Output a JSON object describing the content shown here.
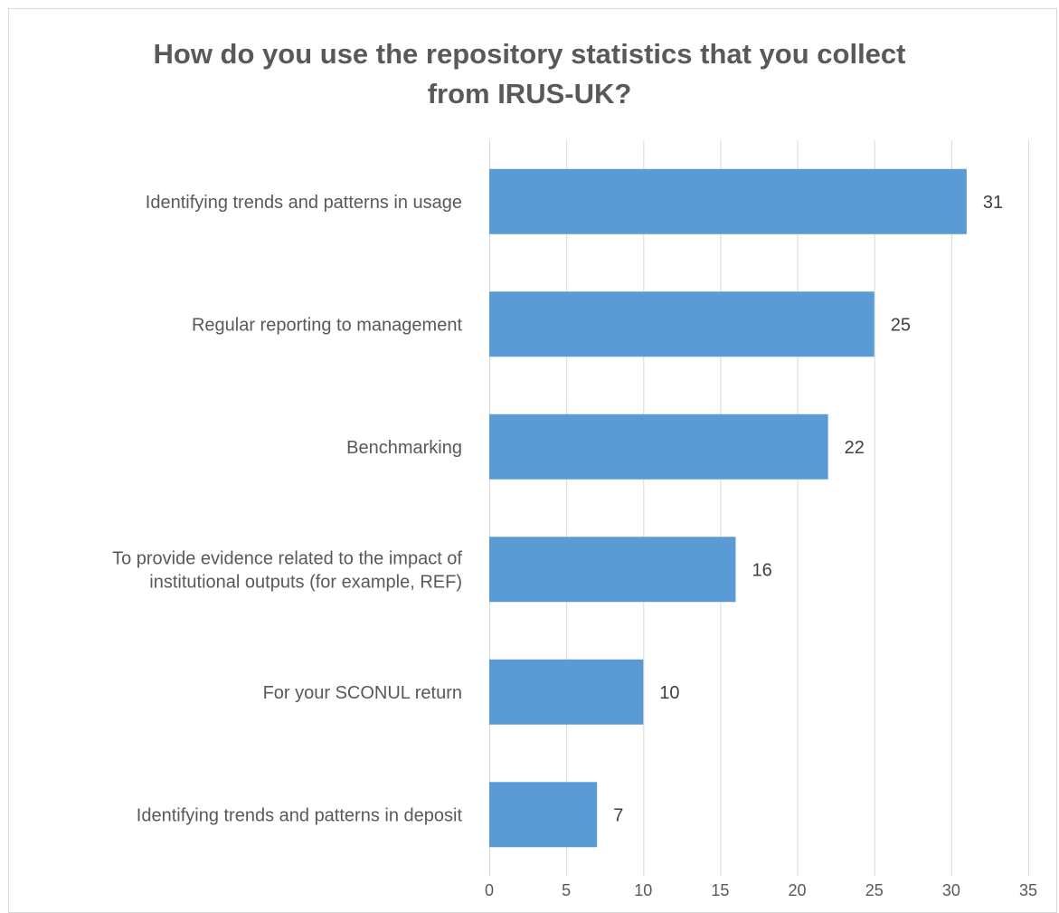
{
  "chart_data": {
    "type": "bar",
    "orientation": "horizontal",
    "title_lines": [
      "How do you use the repository statistics that you collect",
      "from IRUS-UK?"
    ],
    "categories": [
      [
        "Identifying trends and patterns in usage"
      ],
      [
        "Regular reporting to management"
      ],
      [
        "Benchmarking"
      ],
      [
        "To provide evidence related to the impact of",
        "institutional outputs (for example, REF)"
      ],
      [
        "For your SCONUL return"
      ],
      [
        "Identifying trends and patterns in deposit"
      ]
    ],
    "values": [
      31,
      25,
      22,
      16,
      10,
      7
    ],
    "xlim": [
      0,
      35
    ],
    "xticks": [
      0,
      5,
      10,
      15,
      20,
      25,
      30,
      35
    ],
    "grid": true,
    "legend": "none",
    "bar_color": "#5b9bd5",
    "grid_color": "#d9d9d9"
  }
}
